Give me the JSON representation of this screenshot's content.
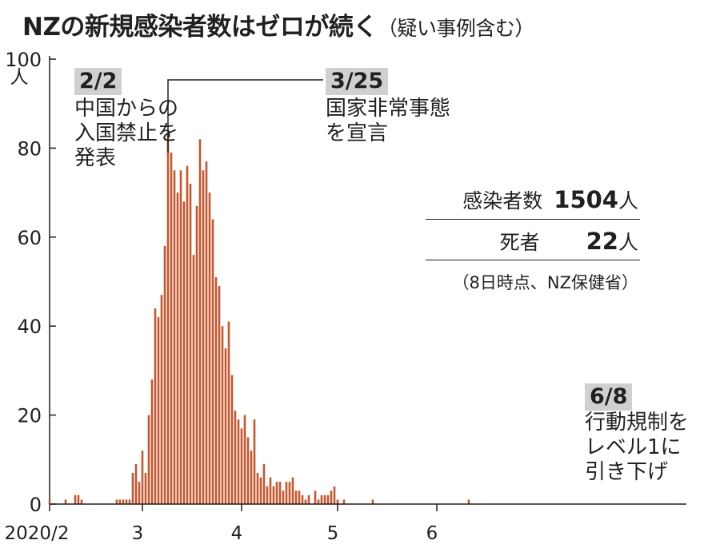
{
  "title": "NZの新規感染者数はゼロが続く",
  "title_note": "（疑い事例含む）",
  "colors": {
    "bar": "#c8552b",
    "axis": "#231f20",
    "tag_bg": "#d0d0d0"
  },
  "stats": {
    "cases_label": "感染者数",
    "cases_value": "1504",
    "cases_unit": "人",
    "deaths_label": "死者",
    "deaths_value": "22",
    "deaths_unit": "人",
    "source": "（8日時点、NZ保健省）"
  },
  "chart_data": {
    "type": "bar",
    "y_unit": "人",
    "ylim": [
      0,
      100
    ],
    "y_ticks": [
      0,
      20,
      40,
      60,
      80,
      100
    ],
    "x_ticks": [
      {
        "day": 0,
        "label": "2020/2"
      },
      {
        "day": 29,
        "label": "3"
      },
      {
        "day": 60,
        "label": "4"
      },
      {
        "day": 90,
        "label": "5"
      },
      {
        "day": 121,
        "label": "6"
      }
    ],
    "x_first_date": "2020/2/1",
    "x_last_date": "2020/6/13",
    "values": [
      1,
      0,
      0,
      0,
      0,
      1,
      0,
      0,
      2,
      2,
      1,
      0,
      0,
      0,
      0,
      0,
      0,
      0,
      0,
      0,
      0,
      1,
      1,
      1,
      1,
      1,
      7,
      9,
      5,
      12,
      7,
      20,
      28,
      44,
      42,
      47,
      58,
      83,
      79,
      75,
      70,
      75,
      68,
      76,
      72,
      56,
      67,
      82,
      75,
      77,
      70,
      64,
      51,
      49,
      40,
      35,
      41,
      29,
      21,
      19,
      17,
      20,
      15,
      12,
      19,
      7,
      6,
      9,
      4,
      6,
      4,
      5,
      5,
      3,
      5,
      5,
      6,
      3,
      3,
      2,
      1,
      2,
      0,
      3,
      1,
      2,
      2,
      2,
      3,
      4,
      1,
      0,
      1,
      0,
      0,
      0,
      0,
      0,
      0,
      0,
      0,
      1,
      0,
      0,
      0,
      0,
      0,
      0,
      0,
      0,
      0,
      0,
      0,
      0,
      0,
      0,
      0,
      0,
      0,
      0,
      0,
      0,
      0,
      0,
      0,
      0,
      0,
      0,
      0,
      0,
      0,
      1,
      0,
      0,
      0,
      0,
      0,
      0,
      0
    ],
    "annotations": [
      {
        "date": "2/2",
        "text": [
          "中国からの",
          "入国禁止を",
          "発表"
        ]
      },
      {
        "date": "3/25",
        "text": [
          "国家非常事態",
          "を宣言"
        ]
      },
      {
        "date": "6/8",
        "text": [
          "行動規制を",
          "レベル1に",
          "引き下げ"
        ]
      }
    ]
  }
}
